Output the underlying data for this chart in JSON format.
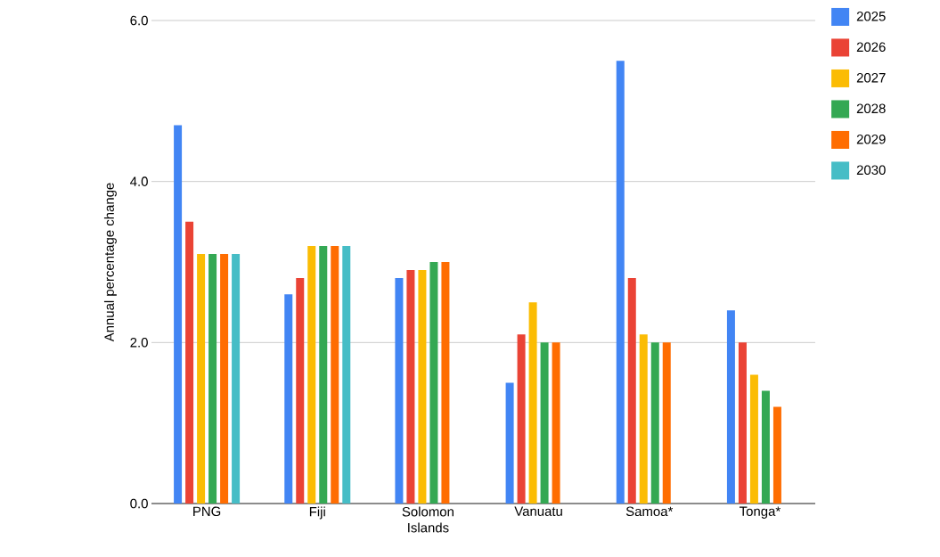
{
  "chart_data": {
    "type": "bar",
    "ylabel": "Annual percentage change",
    "categories": [
      "PNG",
      "Fiji",
      "Solomon Islands",
      "Vanuatu",
      "Samoa*",
      "Tonga*"
    ],
    "series": [
      {
        "name": "2025",
        "color": "#4285f4",
        "values": [
          4.7,
          2.6,
          2.8,
          1.5,
          5.5,
          2.4
        ]
      },
      {
        "name": "2026",
        "color": "#ea4335",
        "values": [
          3.5,
          2.8,
          2.9,
          2.1,
          2.8,
          2.0
        ]
      },
      {
        "name": "2027",
        "color": "#fbbc04",
        "values": [
          3.1,
          3.2,
          2.9,
          2.5,
          2.1,
          1.6
        ]
      },
      {
        "name": "2028",
        "color": "#34a853",
        "values": [
          3.1,
          3.2,
          3.0,
          2.0,
          2.0,
          1.4
        ]
      },
      {
        "name": "2029",
        "color": "#ff6d01",
        "values": [
          3.1,
          3.2,
          3.0,
          2.0,
          2.0,
          1.2
        ]
      },
      {
        "name": "2030",
        "color": "#46bdc6",
        "values": [
          3.1,
          3.2,
          null,
          null,
          null,
          null
        ]
      }
    ],
    "ylim": [
      0,
      6
    ],
    "yticks": [
      {
        "value": 0,
        "label": "0.0"
      },
      {
        "value": 2,
        "label": "2.0"
      },
      {
        "value": 4,
        "label": "4.0"
      },
      {
        "value": 6,
        "label": "6.0"
      }
    ],
    "grid": "y",
    "legend": "top right"
  }
}
